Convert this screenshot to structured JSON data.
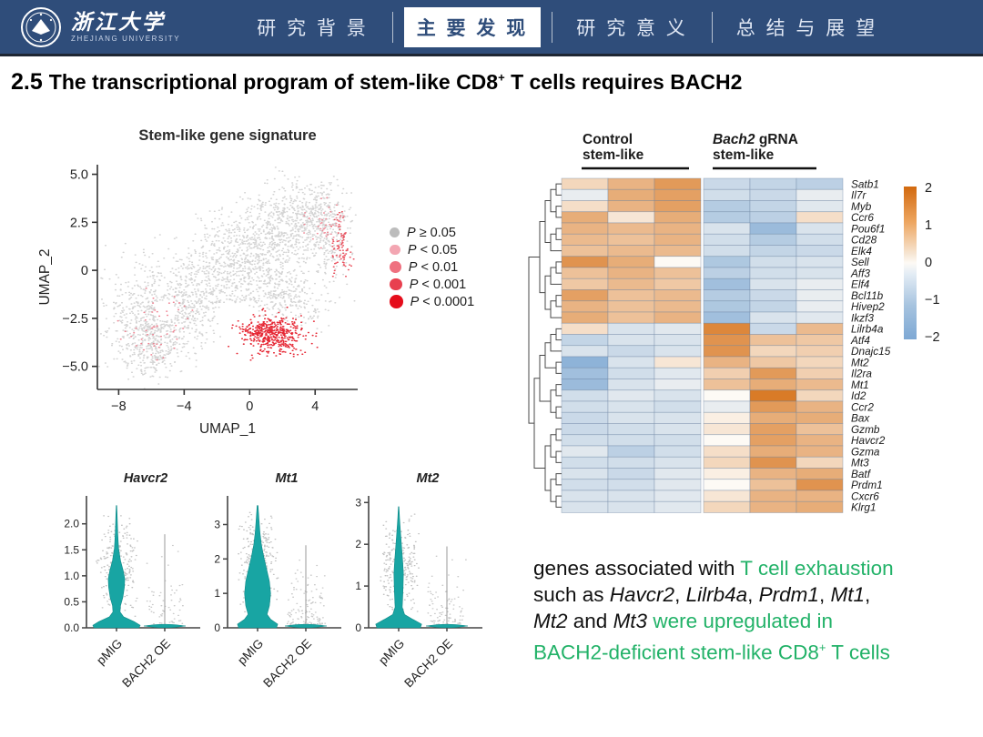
{
  "colors": {
    "navbar_blue": "#2f4d7a",
    "accent_green": "#22b268",
    "violin_teal": "#18a5a3",
    "heatmap_pos": "#d66f14",
    "heatmap_neg": "#6f9fd0",
    "umap_gray": "#c6c6c6",
    "umap_red": "#e3101e"
  },
  "navbar": {
    "logo": {
      "cn": "浙江大学",
      "en": "ZHEJIANG UNIVERSITY"
    },
    "tabs": [
      {
        "label": "研 究 背 景",
        "active": false
      },
      {
        "label": "主 要 发 现",
        "active": true
      },
      {
        "label": "研 究 意 义",
        "active": false
      },
      {
        "label": "总 结 与 展 望",
        "active": false
      }
    ]
  },
  "title": {
    "num": "2.5",
    "pre": "The transcriptional program of stem-like CD8",
    "sup": "+",
    "post": " T cells requires BACH2"
  },
  "caption": {
    "lines": [
      [
        {
          "t": "genes associated with ",
          "s": "k"
        },
        {
          "t": "T cell exhaustion",
          "s": "g"
        }
      ],
      [
        {
          "t": "such as ",
          "s": "k"
        },
        {
          "t": "Havcr2",
          "s": "ki"
        },
        {
          "t": ", ",
          "s": "k"
        },
        {
          "t": "Lilrb4a",
          "s": "ki"
        },
        {
          "t": ", ",
          "s": "k"
        },
        {
          "t": "Prdm1",
          "s": "ki"
        },
        {
          "t": ", ",
          "s": "k"
        },
        {
          "t": "Mt1",
          "s": "ki"
        },
        {
          "t": ",",
          "s": "k"
        }
      ],
      [
        {
          "t": "Mt2",
          "s": "ki"
        },
        {
          "t": " and ",
          "s": "k"
        },
        {
          "t": "Mt3",
          "s": "ki"
        },
        {
          "t": " ",
          "s": "k"
        },
        {
          "t": "were upregulated in",
          "s": "g"
        }
      ],
      [
        {
          "t": "BACH2-deficient stem-like CD8",
          "s": "g"
        },
        {
          "t": "+",
          "s": "gsup"
        },
        {
          "t": " T cells",
          "s": "g"
        }
      ]
    ]
  },
  "chart_data": [
    {
      "type": "scatter",
      "name": "umap",
      "title": "Stem-like gene signature",
      "xlabel": "UMAP_1",
      "ylabel": "UMAP_2",
      "xlim": [
        -9.3,
        6.6
      ],
      "ylim": [
        -6.2,
        5.5
      ],
      "xticks": [
        -8,
        -4,
        0,
        4
      ],
      "xtick_labels": [
        "−8",
        "−4",
        "0",
        "4"
      ],
      "yticks": [
        5.0,
        2.5,
        0,
        -2.5,
        -5.0
      ],
      "ytick_labels": [
        "5.0",
        "2.5",
        "0",
        "−2.5",
        "−5.0"
      ],
      "legend_title": "",
      "legend": [
        {
          "label": "P ≥ 0.05",
          "color": "#bcbcbc"
        },
        {
          "label": "P < 0.05",
          "color": "#f3a6b2"
        },
        {
          "label": "P < 0.01",
          "color": "#ef7180"
        },
        {
          "label": "P < 0.001",
          "color": "#e8404f"
        },
        {
          "label": "P < 0.0001",
          "color": "#e50d1b"
        }
      ],
      "clusters": [
        {
          "x": -6.4,
          "y": -2.6,
          "sx": 1.2,
          "sy": 1.4,
          "n": 480,
          "c": "gray"
        },
        {
          "x": -4.2,
          "y": -2.2,
          "sx": 1.1,
          "sy": 1.1,
          "n": 300,
          "c": "gray"
        },
        {
          "x": -2.2,
          "y": -0.4,
          "sx": 1.2,
          "sy": 1.1,
          "n": 320,
          "c": "gray"
        },
        {
          "x": -0.2,
          "y": 0.9,
          "sx": 1.4,
          "sy": 1.2,
          "n": 420,
          "c": "gray"
        },
        {
          "x": 2.0,
          "y": 2.2,
          "sx": 1.4,
          "sy": 1.1,
          "n": 430,
          "c": "gray"
        },
        {
          "x": 3.8,
          "y": 3.0,
          "sx": 1.1,
          "sy": 0.8,
          "n": 300,
          "c": "gray"
        },
        {
          "x": 1.2,
          "y": -1.0,
          "sx": 1.1,
          "sy": 0.8,
          "n": 190,
          "c": "gray"
        },
        {
          "x": 4.9,
          "y": 1.4,
          "sx": 0.7,
          "sy": 1.0,
          "n": 170,
          "c": "gray"
        },
        {
          "x": -5.9,
          "y": -4.2,
          "sx": 0.8,
          "sy": 0.6,
          "n": 130,
          "c": "gray"
        },
        {
          "x": 2.8,
          "y": -1.8,
          "sx": 0.9,
          "sy": 0.6,
          "n": 120,
          "c": "gray"
        },
        {
          "x": 1.6,
          "y": -3.4,
          "sx": 0.85,
          "sy": 0.5,
          "n": 400,
          "c": "#e3101e"
        },
        {
          "x": 0.4,
          "y": -3.1,
          "sx": 0.6,
          "sy": 0.35,
          "n": 110,
          "c": "#e3101e"
        },
        {
          "x": 5.6,
          "y": 1.4,
          "sx": 0.3,
          "sy": 0.85,
          "n": 85,
          "c": "#e8404f"
        },
        {
          "x": 4.6,
          "y": 2.4,
          "sx": 0.7,
          "sy": 0.5,
          "n": 45,
          "c": "#ef8391"
        },
        {
          "x": -5.6,
          "y": -2.9,
          "sx": 1.0,
          "sy": 0.8,
          "n": 55,
          "c": "#ee7787"
        }
      ],
      "holes": [
        {
          "x": -5.2,
          "y": -2.1,
          "rx": 0.65,
          "ry": 0.55
        },
        {
          "x": -0.9,
          "y": -2.4,
          "rx": 1.1,
          "ry": 0.7
        }
      ]
    },
    {
      "type": "heatmap",
      "name": "bach2-heatmap",
      "col_groups": [
        {
          "parts": [
            {
              "t": "Control",
              "i": false
            }
          ],
          "sub": "stem-like",
          "cols": 3
        },
        {
          "parts": [
            {
              "t": "Bach2",
              "i": true
            },
            {
              "t": " gRNA",
              "i": false
            }
          ],
          "sub": "stem-like",
          "cols": 3
        }
      ],
      "genes": [
        "Satb1",
        "Il7r",
        "Myb",
        "Ccr6",
        "Pou6f1",
        "Cd28",
        "Elk4",
        "Sell",
        "Aff3",
        "Elf4",
        "Bcl11b",
        "Hivep2",
        "Ikzf3",
        "Lilrb4a",
        "Atf4",
        "Dnajc15",
        "Mt2",
        "Il2ra",
        "Mt1",
        "Id2",
        "Ccr2",
        "Bax",
        "Gzmb",
        "Havcr2",
        "Gzma",
        "Mt3",
        "Batf",
        "Prdm1",
        "Cxcr6",
        "Klrg1"
      ],
      "values": [
        [
          0.4,
          0.9,
          1.3,
          -0.6,
          -0.7,
          -0.8
        ],
        [
          -0.2,
          1.0,
          1.2,
          -0.5,
          -0.6,
          -0.2
        ],
        [
          0.3,
          0.9,
          1.2,
          -0.9,
          -0.7,
          -0.3
        ],
        [
          1.0,
          0.2,
          1.0,
          -0.9,
          -0.8,
          0.3
        ],
        [
          0.9,
          0.8,
          0.9,
          -0.4,
          -1.3,
          -0.4
        ],
        [
          0.8,
          0.7,
          0.9,
          -0.5,
          -0.9,
          -0.5
        ],
        [
          0.7,
          0.8,
          0.8,
          -0.5,
          -0.7,
          -0.6
        ],
        [
          1.4,
          1.0,
          0.0,
          -1.0,
          -0.5,
          -0.4
        ],
        [
          0.7,
          0.9,
          0.7,
          -0.8,
          -0.5,
          -0.4
        ],
        [
          0.6,
          0.8,
          0.6,
          -1.2,
          -0.4,
          -0.2
        ],
        [
          1.2,
          0.7,
          0.8,
          -0.9,
          -0.6,
          -0.2
        ],
        [
          0.9,
          0.7,
          0.8,
          -1.0,
          -0.7,
          -0.2
        ],
        [
          1.0,
          0.7,
          0.9,
          -1.2,
          -0.4,
          -0.3
        ],
        [
          0.3,
          -0.4,
          -0.3,
          1.6,
          -0.6,
          0.8
        ],
        [
          -0.7,
          -0.4,
          -0.4,
          1.4,
          0.7,
          0.6
        ],
        [
          -0.4,
          -0.6,
          -0.4,
          1.4,
          0.4,
          0.5
        ],
        [
          -1.5,
          -0.4,
          0.2,
          0.9,
          0.6,
          0.4
        ],
        [
          -1.2,
          -0.5,
          -0.3,
          0.5,
          1.3,
          0.5
        ],
        [
          -1.3,
          -0.4,
          -0.2,
          0.7,
          1.0,
          0.8
        ],
        [
          -0.5,
          -0.3,
          -0.4,
          0.0,
          1.8,
          0.4
        ],
        [
          -0.5,
          -0.4,
          -0.5,
          -0.2,
          1.3,
          0.9
        ],
        [
          -0.6,
          -0.4,
          -0.4,
          0.1,
          1.0,
          1.0
        ],
        [
          -0.6,
          -0.5,
          -0.4,
          0.2,
          1.2,
          0.7
        ],
        [
          -0.5,
          -0.5,
          -0.5,
          0.0,
          1.2,
          0.9
        ],
        [
          -0.3,
          -0.8,
          -0.5,
          0.3,
          1.0,
          0.9
        ],
        [
          -0.5,
          -0.5,
          -0.4,
          0.4,
          1.4,
          0.4
        ],
        [
          -0.4,
          -0.6,
          -0.3,
          0.1,
          0.9,
          1.0
        ],
        [
          -0.5,
          -0.5,
          -0.3,
          0.0,
          0.7,
          1.4
        ],
        [
          -0.4,
          -0.4,
          -0.3,
          0.2,
          0.9,
          0.9
        ],
        [
          -0.4,
          -0.4,
          -0.3,
          0.4,
          0.9,
          1.0
        ]
      ],
      "colorbar": {
        "tick_labels": [
          "2",
          "1",
          "0",
          "−1",
          "−2"
        ],
        "tick_values": [
          2,
          1,
          0,
          -1,
          -2
        ],
        "vmin": -2,
        "vmax": 2
      }
    },
    {
      "type": "violin",
      "name": "expression-violins",
      "categories": [
        "pMIG",
        "BACH2 OE"
      ],
      "panels": [
        {
          "title": "Havcr2",
          "ylim": [
            0,
            2.45
          ],
          "ytick_labels": [
            "0.0",
            "0.5",
            "1.0",
            "1.5",
            "2.0"
          ],
          "ytick_values": [
            0,
            0.5,
            1.0,
            1.5,
            2.0
          ],
          "violin_max": 2.35,
          "line_max": 1.8,
          "dots": [
            240,
            60
          ],
          "profile": [
            [
              0,
              0.95
            ],
            [
              0.02,
              1.0
            ],
            [
              0.05,
              0.75
            ],
            [
              0.09,
              0.3
            ],
            [
              0.13,
              0.15
            ],
            [
              0.18,
              0.17
            ],
            [
              0.25,
              0.27
            ],
            [
              0.33,
              0.33
            ],
            [
              0.4,
              0.35
            ],
            [
              0.47,
              0.28
            ],
            [
              0.55,
              0.17
            ],
            [
              0.65,
              0.09
            ],
            [
              0.78,
              0.05
            ],
            [
              0.9,
              0.03
            ],
            [
              1,
              0.01
            ]
          ]
        },
        {
          "title": "Mt1",
          "ylim": [
            0,
            3.7
          ],
          "ytick_labels": [
            "0",
            "1",
            "2",
            "3"
          ],
          "ytick_values": [
            0,
            1,
            2,
            3
          ],
          "violin_max": 3.55,
          "line_max": 2.4,
          "dots": [
            260,
            120
          ],
          "profile": [
            [
              0,
              0.8
            ],
            [
              0.03,
              0.85
            ],
            [
              0.07,
              0.55
            ],
            [
              0.11,
              0.4
            ],
            [
              0.18,
              0.5
            ],
            [
              0.28,
              0.55
            ],
            [
              0.38,
              0.5
            ],
            [
              0.48,
              0.38
            ],
            [
              0.58,
              0.26
            ],
            [
              0.68,
              0.16
            ],
            [
              0.78,
              0.1
            ],
            [
              0.88,
              0.06
            ],
            [
              1,
              0.02
            ]
          ]
        },
        {
          "title": "Mt2",
          "ylim": [
            0,
            3.05
          ],
          "ytick_labels": [
            "0",
            "1",
            "2",
            "3"
          ],
          "ytick_values": [
            0,
            1,
            2,
            3
          ],
          "violin_max": 2.9,
          "line_max": 1.95,
          "dots": [
            260,
            90
          ],
          "profile": [
            [
              0,
              0.92
            ],
            [
              0.03,
              0.97
            ],
            [
              0.07,
              0.6
            ],
            [
              0.11,
              0.25
            ],
            [
              0.17,
              0.15
            ],
            [
              0.25,
              0.17
            ],
            [
              0.35,
              0.19
            ],
            [
              0.45,
              0.2
            ],
            [
              0.55,
              0.17
            ],
            [
              0.65,
              0.13
            ],
            [
              0.78,
              0.08
            ],
            [
              0.9,
              0.04
            ],
            [
              1,
              0.01
            ]
          ]
        }
      ]
    }
  ]
}
